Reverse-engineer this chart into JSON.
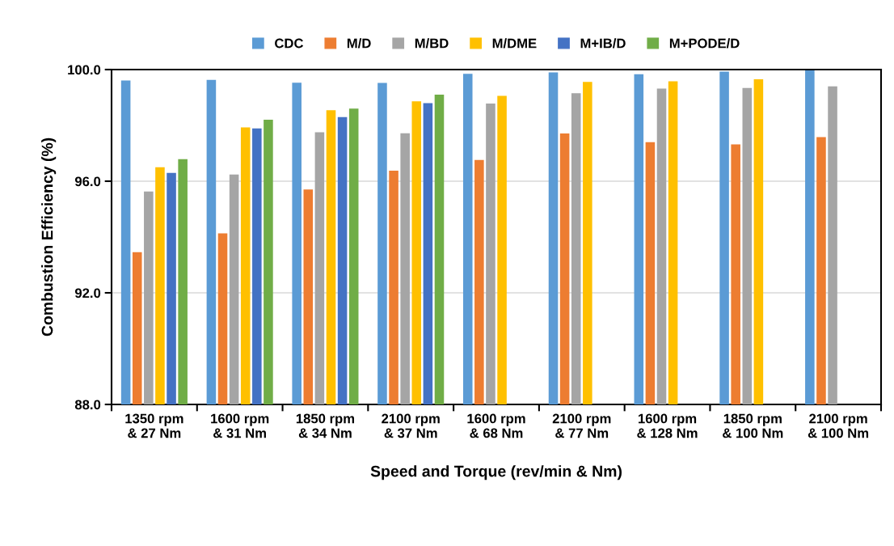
{
  "chart_data": {
    "type": "bar",
    "xlabel": "Speed and Torque (rev/min & Nm)",
    "ylabel": "Combustion Efficiency (%)",
    "categories": [
      "1350 rpm\n& 27 Nm",
      "1600 rpm\n& 31 Nm",
      "1850 rpm\n& 34 Nm",
      "2100 rpm\n& 37 Nm",
      "1600 rpm\n& 68 Nm",
      "2100 rpm\n& 77 Nm",
      "1600 rpm\n& 128 Nm",
      "1850 rpm\n& 100 Nm",
      "2100 rpm\n& 100 Nm"
    ],
    "series": [
      {
        "name": "CDC",
        "color": "#5b9bd5",
        "values": [
          99.61,
          99.63,
          99.53,
          99.52,
          99.85,
          99.9,
          99.83,
          99.93,
          99.97
        ]
      },
      {
        "name": "M/D",
        "color": "#ed7d31",
        "values": [
          93.46,
          94.13,
          95.7,
          96.38,
          96.76,
          97.71,
          97.4,
          97.32,
          97.58
        ]
      },
      {
        "name": "M/BD",
        "color": "#a5a5a5",
        "values": [
          95.63,
          96.24,
          97.75,
          97.72,
          98.78,
          99.15,
          99.32,
          99.34,
          99.4
        ]
      },
      {
        "name": "M/DME",
        "color": "#ffc000",
        "values": [
          96.5,
          97.93,
          98.54,
          98.86,
          99.06,
          99.56,
          99.58,
          99.65,
          null
        ]
      },
      {
        "name": "M+IB/D",
        "color": "#4472c4",
        "values": [
          96.3,
          97.89,
          98.3,
          98.8,
          null,
          null,
          null,
          null,
          null
        ]
      },
      {
        "name": "M+PODE/D",
        "color": "#70ad47",
        "values": [
          96.79,
          98.2,
          98.6,
          99.1,
          null,
          null,
          null,
          null,
          null
        ]
      }
    ],
    "ylim": [
      88,
      100
    ],
    "yticks": [
      {
        "value": 88,
        "label": "88.0"
      },
      {
        "value": 92,
        "label": "92.0"
      },
      {
        "value": 96,
        "label": "96.0"
      },
      {
        "value": 100,
        "label": "100.0"
      }
    ],
    "grid": "y",
    "legend": "top"
  }
}
